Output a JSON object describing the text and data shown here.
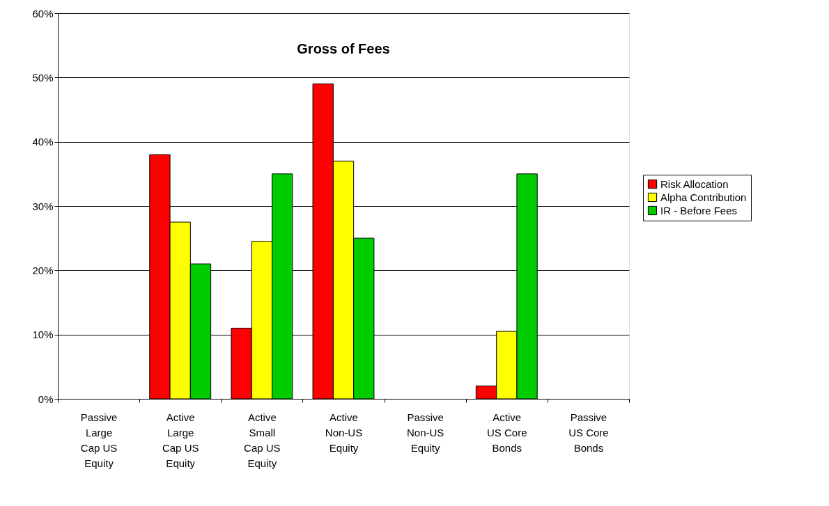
{
  "chart_data": {
    "type": "bar",
    "title": "Gross of Fees",
    "categories": [
      "Passive Large Cap US Equity",
      "Active Large Cap US Equity",
      "Active Small Cap US Equity",
      "Active Non-US Equity",
      "Passive Non-US Equity",
      "Active US Core Bonds",
      "Passive US Core Bonds"
    ],
    "series": [
      {
        "name": "Risk Allocation",
        "color": "#ff0000",
        "values": [
          null,
          38,
          11,
          49,
          null,
          2,
          null
        ]
      },
      {
        "name": "Alpha Contribution",
        "color": "#ffff00",
        "values": [
          null,
          27.5,
          24.5,
          37,
          null,
          10.5,
          null
        ]
      },
      {
        "name": "IR - Before Fees",
        "color": "#00cc00",
        "values": [
          null,
          21,
          35,
          25,
          null,
          35,
          null
        ]
      }
    ],
    "ylim": [
      0,
      60
    ],
    "yticks": [
      {
        "value": 0,
        "label": "0%"
      },
      {
        "value": 10,
        "label": "10%"
      },
      {
        "value": 20,
        "label": "20%"
      },
      {
        "value": 30,
        "label": "30%"
      },
      {
        "value": 40,
        "label": "40%"
      },
      {
        "value": 50,
        "label": "50%"
      },
      {
        "value": 60,
        "label": "60%"
      }
    ],
    "grid": "y",
    "legend": "right"
  }
}
